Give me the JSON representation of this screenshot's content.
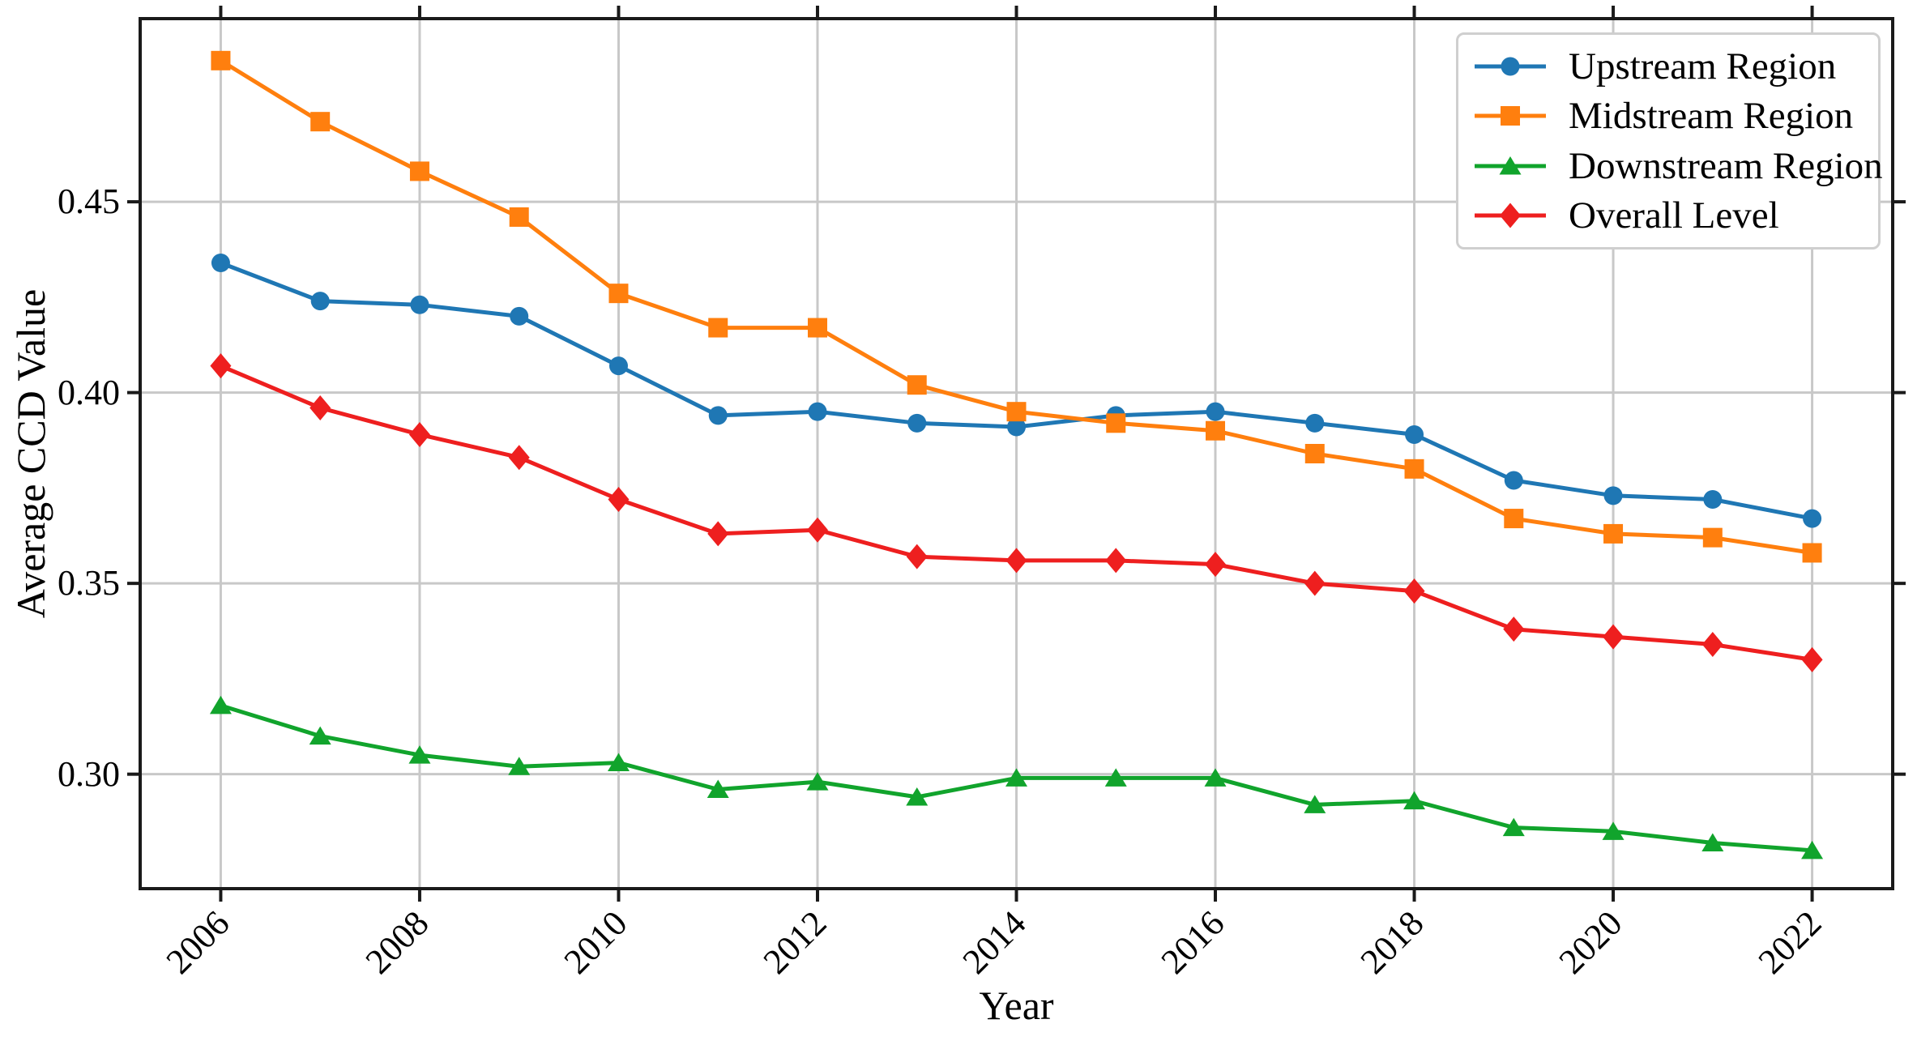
{
  "chart_data": {
    "type": "line",
    "title": "",
    "xlabel": "Year",
    "ylabel": "Average CCD Value",
    "grid": true,
    "legend_position": "upper right",
    "x": [
      2006,
      2007,
      2008,
      2009,
      2010,
      2011,
      2012,
      2013,
      2014,
      2015,
      2016,
      2017,
      2018,
      2019,
      2020,
      2021,
      2022
    ],
    "x_ticks": [
      2006,
      2008,
      2010,
      2012,
      2014,
      2016,
      2018,
      2020,
      2022
    ],
    "x_tick_labels": [
      "2006",
      "2008",
      "2010",
      "2012",
      "2014",
      "2016",
      "2018",
      "2020",
      "2022"
    ],
    "y_ticks": [
      0.3,
      0.35,
      0.4,
      0.45
    ],
    "y_tick_labels": [
      "0.30",
      "0.35",
      "0.40",
      "0.45"
    ],
    "xlim": [
      2005.19,
      2022.81
    ],
    "ylim": [
      0.27,
      0.498
    ],
    "series": [
      {
        "name": "Upstream Region",
        "color": "#1f77b4",
        "marker": "circle",
        "values": [
          0.434,
          0.424,
          0.423,
          0.42,
          0.407,
          0.394,
          0.395,
          0.392,
          0.391,
          0.394,
          0.395,
          0.392,
          0.389,
          0.377,
          0.373,
          0.372,
          0.367
        ]
      },
      {
        "name": "Midstream Region",
        "color": "#ff7f0e",
        "marker": "square",
        "values": [
          0.487,
          0.471,
          0.458,
          0.446,
          0.426,
          0.417,
          0.417,
          0.402,
          0.395,
          0.392,
          0.39,
          0.384,
          0.38,
          0.367,
          0.363,
          0.362,
          0.358
        ]
      },
      {
        "name": "Downstream Region",
        "color": "#11a42c",
        "marker": "triangle",
        "values": [
          0.318,
          0.31,
          0.305,
          0.302,
          0.303,
          0.296,
          0.298,
          0.294,
          0.299,
          0.299,
          0.299,
          0.292,
          0.293,
          0.286,
          0.285,
          0.282,
          0.28
        ]
      },
      {
        "name": "Overall Level",
        "color": "#ee1f1f",
        "marker": "diamond",
        "values": [
          0.407,
          0.396,
          0.389,
          0.383,
          0.372,
          0.363,
          0.364,
          0.357,
          0.356,
          0.356,
          0.355,
          0.35,
          0.348,
          0.338,
          0.336,
          0.334,
          0.33
        ]
      }
    ]
  },
  "styles": {
    "grid_color": "#c8c8c8",
    "spine_color": "#1a1a1a",
    "legend_border_color": "#cfcfcf",
    "background": "#ffffff"
  }
}
